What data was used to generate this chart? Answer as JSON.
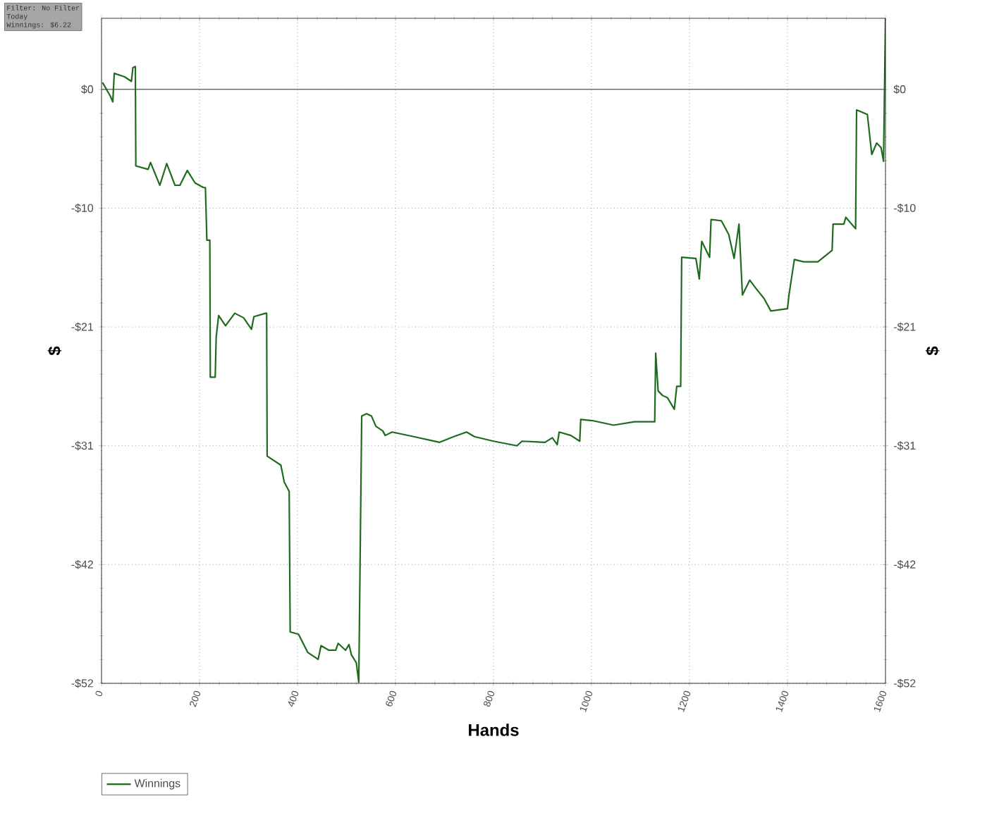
{
  "chart_data": {
    "type": "line",
    "xlabel": "Hands",
    "ylabel": "$",
    "y2label": "$",
    "annotations": [
      "Filter: No Filter",
      "Today",
      "Winnings: $6.22"
    ],
    "x": [
      2,
      18,
      23,
      26,
      47,
      61,
      64,
      69,
      70,
      95,
      100,
      119,
      133,
      150,
      160,
      175,
      191,
      208,
      212,
      215,
      221,
      222,
      232,
      234,
      239,
      253,
      272,
      290,
      306,
      311,
      335,
      337,
      338,
      366,
      373,
      383,
      385,
      402,
      421,
      442,
      448,
      464,
      478,
      483,
      498,
      505,
      510,
      520,
      525,
      531,
      541,
      551,
      560,
      574,
      579,
      593,
      637,
      690,
      719,
      745,
      761,
      800,
      848,
      858,
      905,
      920,
      930,
      934,
      958,
      976,
      978,
      1002,
      1045,
      1088,
      1129,
      1131,
      1136,
      1145,
      1155,
      1169,
      1174,
      1182,
      1184,
      1213,
      1220,
      1225,
      1241,
      1244,
      1265,
      1280,
      1291,
      1301,
      1308,
      1323,
      1337,
      1352,
      1366,
      1400,
      1403,
      1414,
      1433,
      1462,
      1491,
      1493,
      1515,
      1519,
      1539,
      1541,
      1563,
      1572,
      1582,
      1591,
      1596,
      1600
    ],
    "series": [
      {
        "name": "Winnings",
        "color": "#1e6b1e",
        "values": [
          0.6,
          -0.6,
          -1.1,
          1.4,
          1.1,
          0.7,
          1.9,
          2.0,
          -6.7,
          -7.0,
          -6.4,
          -8.4,
          -6.5,
          -8.4,
          -8.4,
          -7.1,
          -8.2,
          -8.6,
          -8.6,
          -13.2,
          -13.2,
          -25.2,
          -25.2,
          -21.7,
          -19.8,
          -20.7,
          -19.6,
          -20.0,
          -21.0,
          -19.9,
          -19.6,
          -19.6,
          -32.1,
          -32.9,
          -34.4,
          -35.2,
          -47.5,
          -47.7,
          -49.3,
          -49.9,
          -48.7,
          -49.1,
          -49.1,
          -48.5,
          -49.1,
          -48.6,
          -49.5,
          -50.2,
          -51.9,
          -28.6,
          -28.4,
          -28.6,
          -29.5,
          -29.9,
          -30.3,
          -30.0,
          -30.4,
          -30.9,
          -30.4,
          -30.0,
          -30.4,
          -30.8,
          -31.2,
          -30.8,
          -30.9,
          -30.5,
          -31.1,
          -30.0,
          -30.3,
          -30.8,
          -28.9,
          -29.0,
          -29.4,
          -29.1,
          -29.1,
          -23.1,
          -26.4,
          -26.8,
          -27.0,
          -28.0,
          -26.0,
          -26.0,
          -14.7,
          -14.8,
          -16.6,
          -13.3,
          -14.7,
          -11.4,
          -11.5,
          -12.7,
          -14.8,
          -11.8,
          -18.0,
          -16.7,
          -17.5,
          -18.3,
          -19.4,
          -19.2,
          -18.0,
          -14.9,
          -15.1,
          -15.1,
          -14.1,
          -11.8,
          -11.8,
          -11.2,
          -12.2,
          -1.8,
          -2.2,
          -5.7,
          -4.7,
          -5.1,
          -6.3,
          6.22
        ]
      }
    ],
    "xlim": [
      0,
      1600
    ],
    "xticks": [
      0,
      200,
      400,
      600,
      800,
      1000,
      1200,
      1400,
      1600
    ],
    "ylim": [
      -52,
      6.22
    ],
    "yticks": [
      {
        "value": 0,
        "label": "$0"
      },
      {
        "value": -10.4,
        "label": "-$10"
      },
      {
        "value": -20.8,
        "label": "-$21"
      },
      {
        "value": -31.2,
        "label": "-$31"
      },
      {
        "value": -41.6,
        "label": "-$42"
      },
      {
        "value": -52,
        "label": "-$52"
      }
    ],
    "y2lim": [
      -52,
      6.22
    ],
    "y2ticks": [
      {
        "value": 0,
        "label": "$0"
      },
      {
        "value": -10.4,
        "label": "-$10"
      },
      {
        "value": -20.8,
        "label": "-$21"
      },
      {
        "value": -31.2,
        "label": "-$31"
      },
      {
        "value": -41.6,
        "label": "-$42"
      },
      {
        "value": -52,
        "label": "-$52"
      }
    ],
    "ref_lines": [
      {
        "axis": "y",
        "value": 0,
        "color": "#707070"
      }
    ],
    "grid": true,
    "legend": "bottom left"
  }
}
